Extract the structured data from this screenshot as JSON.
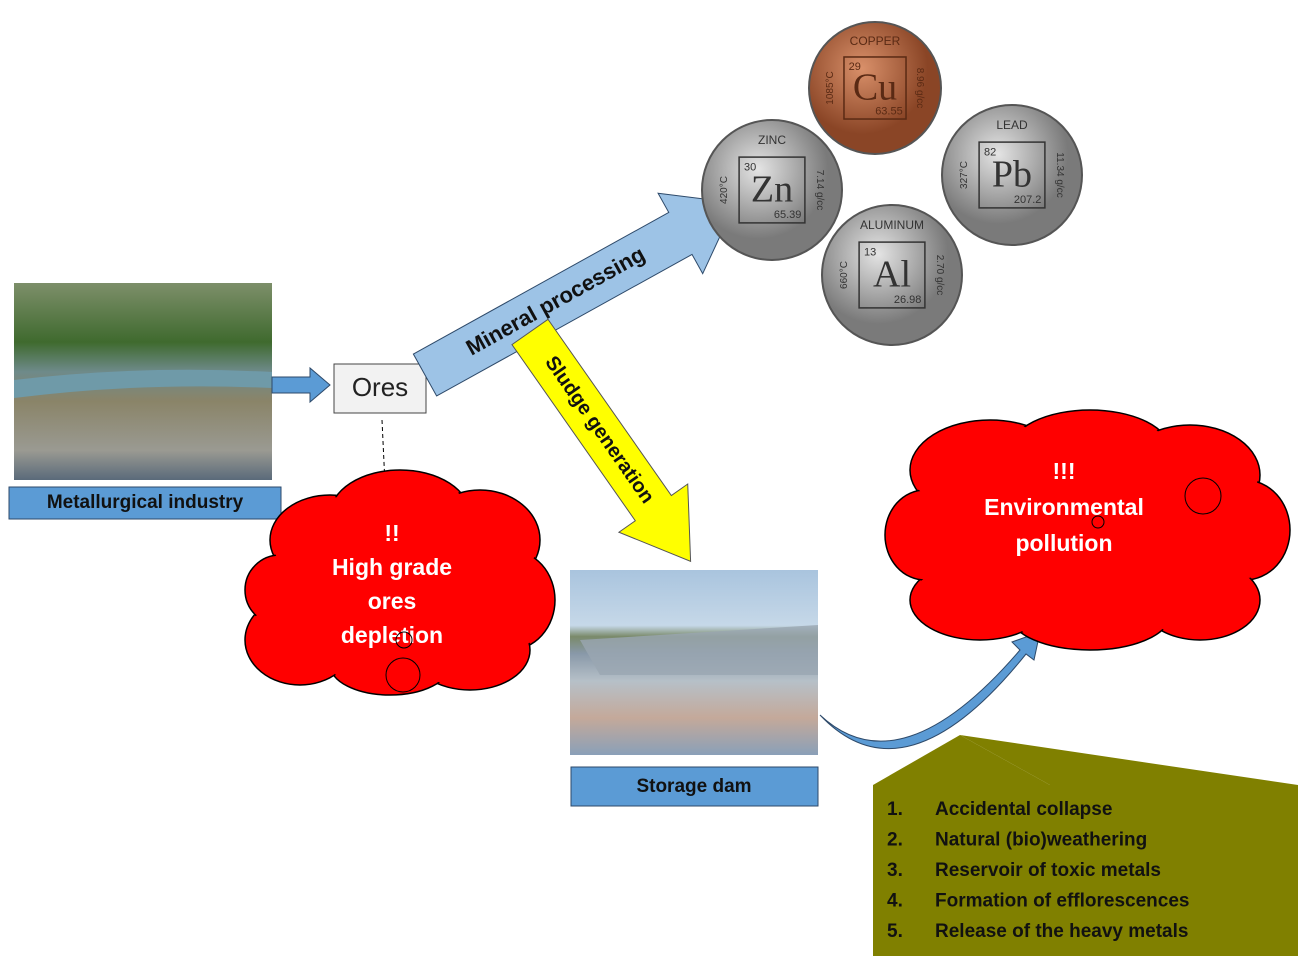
{
  "industry_label": "Metallurgical industry",
  "ores": "Ores",
  "mineral_processing": "Mineral processing",
  "sludge_generation": "Sludge generation",
  "storage_dam": "Storage dam",
  "cloud_left": {
    "lines": [
      "!!",
      "High grade",
      "ores",
      "depletion"
    ]
  },
  "cloud_right": {
    "lines": [
      "!!!",
      "Environmental",
      "pollution"
    ]
  },
  "coins": [
    {
      "name": "COPPER",
      "symbol": "Cu",
      "number": "29",
      "mass": "63.55",
      "melting": "1085°C",
      "density": "8.96 g/cc"
    },
    {
      "name": "ZINC",
      "symbol": "Zn",
      "number": "30",
      "mass": "65.39",
      "melting": "420°C",
      "density": "7.14 g/cc"
    },
    {
      "name": "LEAD",
      "symbol": "Pb",
      "number": "82",
      "mass": "207.2",
      "melting": "327°C",
      "density": "11.34 g/cc"
    },
    {
      "name": "ALUMINUM",
      "symbol": "Al",
      "number": "13",
      "mass": "26.98",
      "melting": "660°C",
      "density": "2.70 g/cc"
    }
  ],
  "risks": [
    {
      "num": "1.",
      "text": "Accidental collapse"
    },
    {
      "num": "2.",
      "text": "Natural (bio)weathering"
    },
    {
      "num": "3.",
      "text": "Reservoir of toxic metals"
    },
    {
      "num": "4.",
      "text": "Formation of efflorescences"
    },
    {
      "num": "5.",
      "text": "Release of the heavy metals"
    }
  ]
}
